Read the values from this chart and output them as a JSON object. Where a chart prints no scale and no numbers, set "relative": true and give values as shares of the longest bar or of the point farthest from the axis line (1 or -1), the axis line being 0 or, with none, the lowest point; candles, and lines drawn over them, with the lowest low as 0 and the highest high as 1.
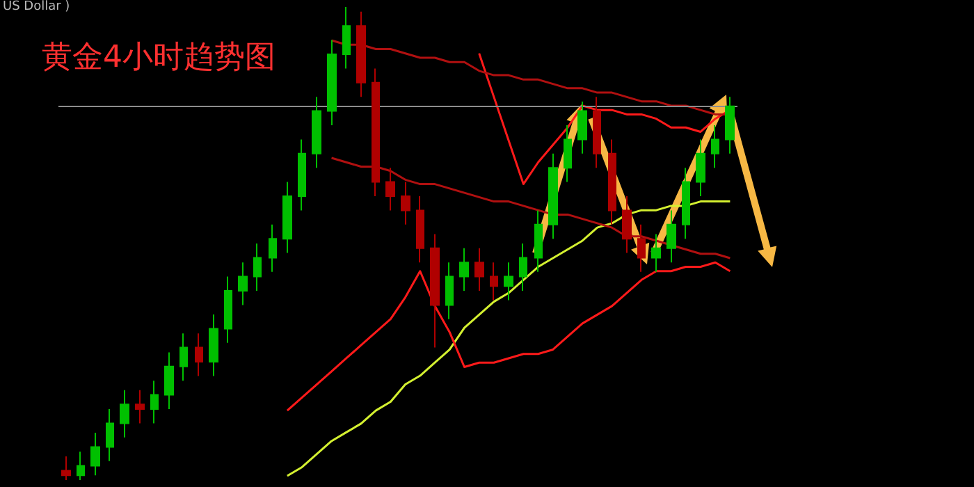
{
  "chart_data": [
    {
      "type": "line",
      "relative": true,
      "categories": [
        null,
        null,
        null,
        null,
        null,
        null,
        null,
        null,
        null,
        null,
        null,
        null,
        null,
        null,
        null,
        null,
        null,
        null,
        null,
        null,
        null,
        null,
        null,
        null,
        null,
        null,
        null,
        null,
        null,
        null,
        null,
        null,
        null,
        null,
        null,
        null,
        null,
        null,
        null,
        null,
        null,
        null,
        null,
        null,
        null,
        null
      ],
      "ref_lines": [
        {
          "axis": "y",
          "value": 0.85,
          "color": "#8c8c8c"
        }
      ],
      "series": [
        {
          "color": "#d4f030",
          "values": [
            null,
            null,
            null,
            null,
            null,
            null,
            null,
            null,
            null,
            null,
            null,
            null,
            null,
            null,
            null,
            0,
            0.02,
            0.05,
            0.08,
            0.1,
            0.12,
            0.15,
            0.17,
            0.21,
            0.23,
            0.26,
            0.29,
            0.34,
            0.37,
            0.4,
            0.42,
            0.45,
            0.48,
            0.5,
            0.52,
            0.54,
            0.57,
            0.58,
            0.6,
            0.61,
            0.61,
            0.62,
            0.62,
            0.63,
            0.63,
            0.63
          ]
        },
        {
          "color": "#ff1a1a",
          "values": [
            null,
            null,
            null,
            null,
            null,
            null,
            null,
            null,
            null,
            null,
            null,
            null,
            null,
            null,
            null,
            0.15,
            0.18,
            0.21,
            0.24,
            0.27,
            0.3,
            0.33,
            0.36,
            0.41,
            0.47,
            0.39,
            0.33,
            0.25,
            0.26,
            0.26,
            0.27,
            0.28,
            0.28,
            0.29,
            0.32,
            0.35,
            0.37,
            0.39,
            0.42,
            0.45,
            0.47,
            0.47,
            0.48,
            0.48,
            0.49,
            0.47
          ]
        },
        {
          "color": "#ff1a1a",
          "values": [
            null,
            null,
            null,
            null,
            null,
            null,
            null,
            null,
            null,
            null,
            null,
            null,
            null,
            null,
            null,
            null,
            null,
            null,
            null,
            null,
            null,
            null,
            null,
            null,
            null,
            null,
            null,
            null,
            0.97,
            0.87,
            0.77,
            0.67,
            0.72,
            0.76,
            0.8,
            0.85,
            0.84,
            0.84,
            0.83,
            0.83,
            0.82,
            0.8,
            0.8,
            0.79,
            0.82,
            0.84
          ]
        },
        {
          "color": "#b01010",
          "values": [
            null,
            null,
            null,
            null,
            null,
            null,
            null,
            null,
            null,
            null,
            null,
            null,
            null,
            null,
            null,
            null,
            null,
            null,
            1,
            0.99,
            0.99,
            0.98,
            0.98,
            0.97,
            0.96,
            0.96,
            0.95,
            0.95,
            0.93,
            0.92,
            0.92,
            0.91,
            0.91,
            0.9,
            0.89,
            0.89,
            0.88,
            0.88,
            0.87,
            0.86,
            0.86,
            0.85,
            0.85,
            0.84,
            0.83,
            0.83
          ]
        },
        {
          "color": "#b01010",
          "values": [
            null,
            null,
            null,
            null,
            null,
            null,
            null,
            null,
            null,
            null,
            null,
            null,
            null,
            null,
            null,
            null,
            null,
            null,
            0.73,
            0.72,
            0.71,
            0.71,
            0.7,
            0.68,
            0.67,
            0.67,
            0.66,
            0.65,
            0.64,
            0.63,
            0.63,
            0.62,
            0.61,
            0.6,
            0.6,
            0.59,
            0.58,
            0.57,
            0.55,
            0.55,
            0.54,
            0.53,
            0.52,
            0.51,
            0.51,
            0.5
          ]
        }
      ]
    },
    {
      "type": "candlestick",
      "title": "黄金4小时趋势图",
      "annotations": [
        "US Dollar )"
      ],
      "relative": true,
      "categories": [
        null,
        null,
        null,
        null,
        null,
        null,
        null,
        null,
        null,
        null,
        null,
        null,
        null,
        null,
        null,
        null,
        null,
        null,
        null,
        null,
        null,
        null,
        null,
        null,
        null,
        null,
        null,
        null,
        null,
        null,
        null,
        null,
        null,
        null,
        null,
        null,
        null,
        null,
        null,
        null,
        null,
        null,
        null,
        null,
        null,
        null
      ],
      "series": [
        {
          "ohlc": [
            [
              0.02,
              0.05,
              0,
              0.01
            ],
            [
              0.01,
              0.06,
              0,
              0.03
            ],
            [
              0.03,
              0.1,
              0.01,
              0.07
            ],
            [
              0.07,
              0.15,
              0.04,
              0.12
            ],
            [
              0.12,
              0.19,
              0.09,
              0.16
            ],
            [
              0.16,
              0.19,
              0.12,
              0.15
            ],
            [
              0.15,
              0.21,
              0.12,
              0.18
            ],
            [
              0.18,
              0.27,
              0.15,
              0.24
            ],
            [
              0.24,
              0.31,
              0.21,
              0.28
            ],
            [
              0.28,
              0.31,
              0.22,
              0.25
            ],
            [
              0.25,
              0.35,
              0.22,
              0.32
            ],
            [
              0.32,
              0.43,
              0.29,
              0.4
            ],
            [
              0.4,
              0.46,
              0.37,
              0.43
            ],
            [
              0.43,
              0.5,
              0.4,
              0.47
            ],
            [
              0.47,
              0.54,
              0.44,
              0.51
            ],
            [
              0.51,
              0.63,
              0.48,
              0.6
            ],
            [
              0.6,
              0.72,
              0.57,
              0.69
            ],
            [
              0.69,
              0.81,
              0.66,
              0.78
            ],
            [
              0.78,
              0.93,
              0.75,
              0.9
            ],
            [
              0.9,
              1,
              0.87,
              0.96
            ],
            [
              0.96,
              0.99,
              0.81,
              0.84
            ],
            [
              0.84,
              0.87,
              0.6,
              0.63
            ],
            [
              0.63,
              0.66,
              0.57,
              0.6
            ],
            [
              0.6,
              0.63,
              0.54,
              0.57
            ],
            [
              0.57,
              0.6,
              0.46,
              0.49
            ],
            [
              0.49,
              0.52,
              0.28,
              0.37
            ],
            [
              0.37,
              0.46,
              0.34,
              0.43
            ],
            [
              0.43,
              0.49,
              0.4,
              0.46
            ],
            [
              0.46,
              0.49,
              0.4,
              0.43
            ],
            [
              0.43,
              0.46,
              0.38,
              0.41
            ],
            [
              0.41,
              0.46,
              0.38,
              0.43
            ],
            [
              0.43,
              0.5,
              0.4,
              0.47
            ],
            [
              0.47,
              0.57,
              0.44,
              0.54
            ],
            [
              0.54,
              0.69,
              0.51,
              0.66
            ],
            [
              0.66,
              0.75,
              0.63,
              0.72
            ],
            [
              0.72,
              0.8,
              0.69,
              0.78
            ],
            [
              0.78,
              0.81,
              0.66,
              0.69
            ],
            [
              0.69,
              0.72,
              0.54,
              0.57
            ],
            [
              0.57,
              0.6,
              0.48,
              0.51
            ],
            [
              0.51,
              0.54,
              0.44,
              0.47
            ],
            [
              0.47,
              0.52,
              0.44,
              0.49
            ],
            [
              0.49,
              0.57,
              0.46,
              0.54
            ],
            [
              0.54,
              0.66,
              0.51,
              0.63
            ],
            [
              0.63,
              0.72,
              0.6,
              0.69
            ],
            [
              0.69,
              0.75,
              0.66,
              0.72
            ],
            [
              0.72,
              0.81,
              0.69,
              0.79
            ]
          ],
          "colors": [
            "#b00000",
            "#00c000",
            "#00c000",
            "#00c000",
            "#00c000",
            "#b00000",
            "#00c000",
            "#00c000",
            "#00c000",
            "#b00000",
            "#00c000",
            "#00c000",
            "#00c000",
            "#00c000",
            "#00c000",
            "#00c000",
            "#00c000",
            "#00c000",
            "#00c000",
            "#00c000",
            "#b00000",
            "#b00000",
            "#b00000",
            "#b00000",
            "#b00000",
            "#b00000",
            "#00c000",
            "#00c000",
            "#b00000",
            "#b00000",
            "#00c000",
            "#00c000",
            "#00c000",
            "#00c000",
            "#00c000",
            "#00c000",
            "#b00000",
            "#b00000",
            "#b00000",
            "#b00000",
            "#00c000",
            "#00c000",
            "#00c000",
            "#00c000",
            "#00c000",
            "#00c000"
          ]
        }
      ]
    }
  ]
}
